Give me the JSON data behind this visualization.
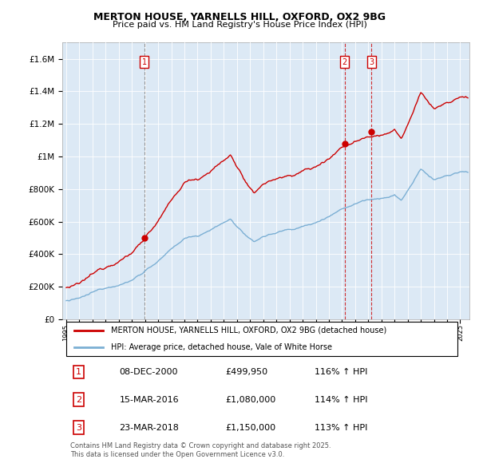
{
  "title": "MERTON HOUSE, YARNELLS HILL, OXFORD, OX2 9BG",
  "subtitle": "Price paid vs. HM Land Registry's House Price Index (HPI)",
  "red_label": "MERTON HOUSE, YARNELLS HILL, OXFORD, OX2 9BG (detached house)",
  "blue_label": "HPI: Average price, detached house, Vale of White Horse",
  "footnote": "Contains HM Land Registry data © Crown copyright and database right 2025.\nThis data is licensed under the Open Government Licence v3.0.",
  "sales": [
    {
      "num": 1,
      "date": "08-DEC-2000",
      "price": "£499,950",
      "pct": "116% ↑ HPI",
      "year": 2000.94,
      "price_val": 499950,
      "vline_style": "dashed_gray"
    },
    {
      "num": 2,
      "date": "15-MAR-2016",
      "price": "£1,080,000",
      "pct": "114% ↑ HPI",
      "year": 2016.21,
      "price_val": 1080000,
      "vline_style": "dashed_red"
    },
    {
      "num": 3,
      "date": "23-MAR-2018",
      "price": "£1,150,000",
      "pct": "113% ↑ HPI",
      "year": 2018.23,
      "price_val": 1150000,
      "vline_style": "dashed_red"
    }
  ],
  "ylim": [
    0,
    1700000
  ],
  "yticks": [
    0,
    200000,
    400000,
    600000,
    800000,
    1000000,
    1200000,
    1400000,
    1600000
  ],
  "ytick_labels": [
    "£0",
    "£200K",
    "£400K",
    "£600K",
    "£800K",
    "£1M",
    "£1.2M",
    "£1.4M",
    "£1.6M"
  ],
  "red_color": "#cc0000",
  "blue_color": "#7bafd4",
  "background_color": "#ffffff",
  "plot_bg_color": "#dce9f5",
  "grid_color": "#ffffff",
  "vline_gray_color": "#888888",
  "vline_red_color": "#cc0000"
}
